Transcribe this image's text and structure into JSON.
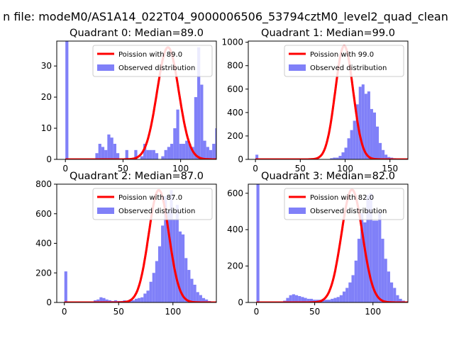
{
  "suptitle": "n file: modeM0/AS1A14_022T04_9000006506_53794cztM0_level2_quad_clean",
  "colors": {
    "hist": "#8080f8",
    "curve": "#ff0000"
  },
  "chart_data": [
    {
      "type": "histogram+line",
      "title": "Quadrant 0: Median=89.0",
      "legend_position": "upper-right",
      "legend": [
        "Poission with 89.0",
        "Observed distribution"
      ],
      "xlim": [
        -7.5,
        131
      ],
      "ylim": [
        0,
        38
      ],
      "xticks": [
        0,
        50,
        100
      ],
      "yticks": [
        0,
        10,
        20,
        30
      ],
      "bin_start": 0,
      "bin_width": 2.6,
      "counts": [
        38,
        0,
        0,
        0,
        0,
        0,
        0,
        0,
        0,
        0,
        2,
        5,
        4,
        3,
        8,
        7,
        5,
        2,
        0,
        0,
        3,
        0,
        0,
        3,
        0,
        1,
        5,
        3,
        3,
        3,
        2,
        0,
        1,
        3,
        4,
        5,
        10,
        16,
        5,
        5,
        6,
        5,
        4,
        20,
        36,
        24,
        6,
        4,
        3,
        5,
        10,
        0,
        0,
        2,
        2,
        0,
        1,
        0,
        2,
        1
      ],
      "curve_median": 89.0,
      "curve_peak": 36
    },
    {
      "type": "histogram+line",
      "title": "Quadrant 1: Median=99.0",
      "legend_position": "upper-right",
      "legend": [
        "Poission with 99.0",
        "Observed distribution"
      ],
      "xlim": [
        -8,
        170
      ],
      "ylim": [
        0,
        1010
      ],
      "xticks": [
        0,
        50,
        100,
        150
      ],
      "yticks": [
        0,
        200,
        400,
        600,
        800,
        1000
      ],
      "bin_start": 0,
      "bin_width": 3.2,
      "counts": [
        40,
        0,
        0,
        0,
        0,
        0,
        0,
        0,
        0,
        0,
        0,
        0,
        0,
        0,
        0,
        0,
        0,
        0,
        0,
        0,
        0,
        0,
        0,
        0,
        0,
        0,
        10,
        15,
        15,
        30,
        60,
        100,
        180,
        250,
        330,
        470,
        620,
        640,
        560,
        580,
        430,
        400,
        280,
        140,
        80,
        40,
        20,
        15,
        10,
        5,
        3,
        2,
        1,
        0,
        0
      ],
      "curve_median": 99.0,
      "curve_peak": 970
    },
    {
      "type": "histogram+line",
      "title": "Quadrant 2: Median=87.0",
      "legend_position": "upper-right",
      "legend": [
        "Poission with 87.0",
        "Observed distribution"
      ],
      "xlim": [
        -7,
        140
      ],
      "ylim": [
        0,
        800
      ],
      "xticks": [
        0,
        50,
        100
      ],
      "yticks": [
        0,
        200,
        400,
        600,
        800
      ],
      "bin_start": 0,
      "bin_width": 2.7,
      "counts": [
        210,
        0,
        0,
        0,
        0,
        0,
        0,
        0,
        0,
        0,
        15,
        20,
        35,
        30,
        20,
        15,
        10,
        15,
        10,
        10,
        15,
        10,
        20,
        15,
        25,
        30,
        35,
        60,
        80,
        140,
        200,
        280,
        380,
        520,
        720,
        620,
        760,
        560,
        660,
        480,
        460,
        300,
        220,
        160,
        120,
        70,
        50,
        30,
        20,
        10,
        5,
        3
      ],
      "curve_median": 87.0,
      "curve_peak": 760
    },
    {
      "type": "histogram+line",
      "title": "Quadrant 3: Median=82.0",
      "legend_position": "upper-right",
      "legend": [
        "Poission with 82.0",
        "Observed distribution"
      ],
      "xlim": [
        -7,
        130
      ],
      "ylim": [
        0,
        650
      ],
      "xticks": [
        0,
        50,
        100
      ],
      "yticks": [
        0,
        200,
        400,
        600
      ],
      "bin_start": 0,
      "bin_width": 2.55,
      "counts": [
        650,
        0,
        0,
        0,
        0,
        0,
        0,
        0,
        0,
        10,
        25,
        40,
        45,
        40,
        35,
        30,
        25,
        20,
        20,
        15,
        15,
        15,
        20,
        15,
        15,
        20,
        25,
        30,
        40,
        60,
        80,
        110,
        150,
        230,
        350,
        490,
        440,
        590,
        600,
        450,
        450,
        500,
        350,
        240,
        170,
        110,
        80,
        40,
        20,
        10,
        5,
        2
      ],
      "curve_median": 82.0,
      "curve_peak": 620
    }
  ]
}
